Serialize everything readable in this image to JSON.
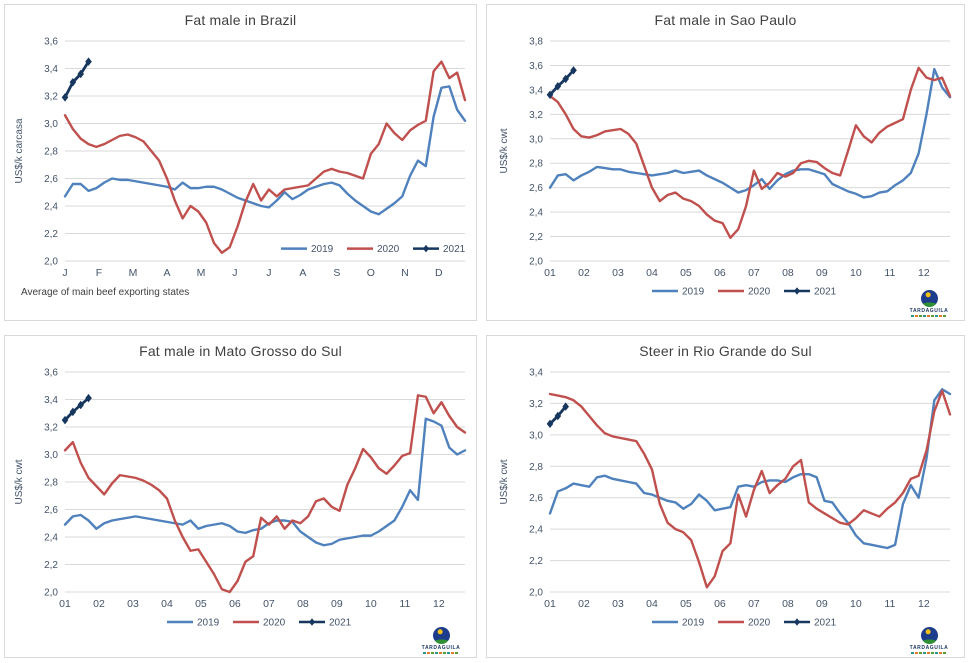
{
  "page": {
    "background": "#ffffff"
  },
  "colors": {
    "gridline": "#d9d9d9",
    "tick_text": "#44546a",
    "title_text": "#404040",
    "legend_text": "#44546a",
    "series_2019": "#4f81bd",
    "series_2020": "#c0504d",
    "series_2021": "#17375e"
  },
  "logo": {
    "text": "TARDAGUILA"
  },
  "chart_data": [
    {
      "type": "line",
      "title": "Fat male in Brazil",
      "ylabel": "US$/k carcasa",
      "ylim": [
        2.0,
        3.6
      ],
      "ytick_step": 0.2,
      "grid": "horizontal",
      "legend_position": "inside-right",
      "x_labels": [
        "J",
        "F",
        "M",
        "A",
        "M",
        "J",
        "J",
        "A",
        "S",
        "O",
        "N",
        "D"
      ],
      "caption": "Average of main beef exporting states",
      "show_logo": false,
      "series": [
        {
          "name": "2019",
          "color": "#4f81bd",
          "marker": "none",
          "values": [
            2.47,
            2.56,
            2.56,
            2.51,
            2.53,
            2.57,
            2.6,
            2.59,
            2.59,
            2.58,
            2.57,
            2.56,
            2.55,
            2.54,
            2.52,
            2.57,
            2.53,
            2.53,
            2.54,
            2.54,
            2.52,
            2.49,
            2.46,
            2.44,
            2.42,
            2.4,
            2.39,
            2.44,
            2.5,
            2.45,
            2.48,
            2.52,
            2.54,
            2.56,
            2.57,
            2.55,
            2.49,
            2.44,
            2.4,
            2.36,
            2.34,
            2.38,
            2.42,
            2.47,
            2.62,
            2.73,
            2.69,
            3.05,
            3.26,
            3.27,
            3.1,
            3.02
          ]
        },
        {
          "name": "2020",
          "color": "#c0504d",
          "marker": "none",
          "values": [
            3.06,
            2.96,
            2.89,
            2.85,
            2.83,
            2.85,
            2.88,
            2.91,
            2.92,
            2.9,
            2.87,
            2.8,
            2.73,
            2.6,
            2.44,
            2.31,
            2.4,
            2.36,
            2.28,
            2.13,
            2.06,
            2.1,
            2.25,
            2.43,
            2.56,
            2.44,
            2.52,
            2.47,
            2.52,
            2.53,
            2.54,
            2.55,
            2.6,
            2.65,
            2.67,
            2.65,
            2.64,
            2.62,
            2.6,
            2.78,
            2.85,
            3.0,
            2.93,
            2.88,
            2.95,
            2.99,
            3.02,
            3.38,
            3.45,
            3.33,
            3.37,
            3.17
          ]
        },
        {
          "name": "2021",
          "color": "#17375e",
          "marker": "diamond",
          "values": [
            3.19,
            3.3,
            3.36,
            3.45
          ]
        }
      ]
    },
    {
      "type": "line",
      "title": "Fat male in Sao Paulo",
      "ylabel": "US$/k cwt",
      "ylim": [
        2.0,
        3.8
      ],
      "ytick_step": 0.2,
      "grid": "horizontal",
      "legend_position": "bottom-center",
      "x_labels": [
        "01",
        "02",
        "03",
        "04",
        "05",
        "06",
        "07",
        "08",
        "09",
        "10",
        "11",
        "12"
      ],
      "caption": "",
      "show_logo": true,
      "series": [
        {
          "name": "2019",
          "color": "#4f81bd",
          "marker": "none",
          "values": [
            2.6,
            2.7,
            2.71,
            2.66,
            2.7,
            2.73,
            2.77,
            2.76,
            2.75,
            2.75,
            2.73,
            2.72,
            2.71,
            2.7,
            2.71,
            2.72,
            2.74,
            2.72,
            2.73,
            2.74,
            2.7,
            2.67,
            2.64,
            2.6,
            2.56,
            2.58,
            2.62,
            2.67,
            2.59,
            2.66,
            2.71,
            2.74,
            2.75,
            2.75,
            2.73,
            2.71,
            2.63,
            2.6,
            2.57,
            2.55,
            2.52,
            2.53,
            2.56,
            2.57,
            2.62,
            2.66,
            2.72,
            2.88,
            3.2,
            3.57,
            3.42,
            3.34
          ]
        },
        {
          "name": "2020",
          "color": "#c0504d",
          "marker": "none",
          "values": [
            3.35,
            3.3,
            3.2,
            3.08,
            3.02,
            3.01,
            3.03,
            3.06,
            3.07,
            3.08,
            3.04,
            2.96,
            2.78,
            2.6,
            2.49,
            2.54,
            2.56,
            2.51,
            2.49,
            2.45,
            2.38,
            2.33,
            2.31,
            2.19,
            2.26,
            2.45,
            2.74,
            2.59,
            2.64,
            2.72,
            2.69,
            2.72,
            2.8,
            2.82,
            2.81,
            2.76,
            2.72,
            2.7,
            2.9,
            3.11,
            3.02,
            2.97,
            3.05,
            3.1,
            3.13,
            3.16,
            3.4,
            3.58,
            3.5,
            3.48,
            3.5,
            3.35
          ]
        },
        {
          "name": "2021",
          "color": "#17375e",
          "marker": "diamond",
          "values": [
            3.36,
            3.43,
            3.49,
            3.56
          ]
        }
      ]
    },
    {
      "type": "line",
      "title": "Fat male in Mato Grosso do Sul",
      "ylabel": "US$/k cwt",
      "ylim": [
        2.0,
        3.6
      ],
      "ytick_step": 0.2,
      "grid": "horizontal",
      "legend_position": "bottom-center",
      "x_labels": [
        "01",
        "02",
        "03",
        "04",
        "05",
        "06",
        "07",
        "08",
        "09",
        "10",
        "11",
        "12"
      ],
      "caption": "",
      "show_logo": true,
      "series": [
        {
          "name": "2019",
          "color": "#4f81bd",
          "marker": "none",
          "values": [
            2.49,
            2.55,
            2.56,
            2.52,
            2.46,
            2.5,
            2.52,
            2.53,
            2.54,
            2.55,
            2.54,
            2.53,
            2.52,
            2.51,
            2.5,
            2.49,
            2.52,
            2.46,
            2.48,
            2.49,
            2.5,
            2.48,
            2.44,
            2.43,
            2.45,
            2.46,
            2.5,
            2.52,
            2.52,
            2.51,
            2.44,
            2.4,
            2.36,
            2.34,
            2.35,
            2.38,
            2.39,
            2.4,
            2.41,
            2.41,
            2.44,
            2.48,
            2.52,
            2.62,
            2.74,
            2.67,
            3.26,
            3.24,
            3.21,
            3.05,
            3.0,
            3.03
          ]
        },
        {
          "name": "2020",
          "color": "#c0504d",
          "marker": "none",
          "values": [
            3.03,
            3.09,
            2.94,
            2.83,
            2.77,
            2.71,
            2.79,
            2.85,
            2.84,
            2.83,
            2.81,
            2.78,
            2.74,
            2.68,
            2.52,
            2.4,
            2.3,
            2.31,
            2.22,
            2.13,
            2.02,
            2.0,
            2.08,
            2.22,
            2.26,
            2.54,
            2.49,
            2.55,
            2.46,
            2.52,
            2.5,
            2.55,
            2.66,
            2.68,
            2.62,
            2.59,
            2.78,
            2.9,
            3.04,
            2.98,
            2.9,
            2.86,
            2.92,
            2.99,
            3.01,
            3.43,
            3.42,
            3.3,
            3.38,
            3.28,
            3.2,
            3.16
          ]
        },
        {
          "name": "2021",
          "color": "#17375e",
          "marker": "diamond",
          "values": [
            3.25,
            3.31,
            3.36,
            3.41
          ]
        }
      ]
    },
    {
      "type": "line",
      "title": "Steer in Rio Grande do Sul",
      "ylabel": "US$/k cwt",
      "ylim": [
        2.0,
        3.4
      ],
      "ytick_step": 0.2,
      "grid": "horizontal",
      "legend_position": "bottom-center",
      "x_labels": [
        "01",
        "02",
        "03",
        "04",
        "05",
        "06",
        "07",
        "08",
        "09",
        "10",
        "11",
        "12"
      ],
      "caption": "",
      "show_logo": true,
      "series": [
        {
          "name": "2019",
          "color": "#4f81bd",
          "marker": "none",
          "values": [
            2.5,
            2.64,
            2.66,
            2.69,
            2.68,
            2.67,
            2.73,
            2.74,
            2.72,
            2.71,
            2.7,
            2.69,
            2.63,
            2.62,
            2.6,
            2.58,
            2.57,
            2.53,
            2.56,
            2.62,
            2.58,
            2.52,
            2.53,
            2.54,
            2.67,
            2.68,
            2.67,
            2.7,
            2.71,
            2.71,
            2.7,
            2.73,
            2.75,
            2.75,
            2.73,
            2.58,
            2.57,
            2.5,
            2.44,
            2.36,
            2.31,
            2.3,
            2.29,
            2.28,
            2.3,
            2.56,
            2.68,
            2.6,
            2.85,
            3.22,
            3.29,
            3.26
          ]
        },
        {
          "name": "2020",
          "color": "#c0504d",
          "marker": "none",
          "values": [
            3.26,
            3.25,
            3.24,
            3.22,
            3.18,
            3.12,
            3.06,
            3.01,
            2.99,
            2.98,
            2.97,
            2.96,
            2.88,
            2.78,
            2.56,
            2.44,
            2.4,
            2.38,
            2.33,
            2.19,
            2.03,
            2.1,
            2.26,
            2.31,
            2.62,
            2.48,
            2.65,
            2.77,
            2.63,
            2.68,
            2.72,
            2.8,
            2.84,
            2.57,
            2.53,
            2.5,
            2.47,
            2.44,
            2.43,
            2.47,
            2.52,
            2.5,
            2.48,
            2.53,
            2.57,
            2.63,
            2.72,
            2.74,
            2.9,
            3.15,
            3.28,
            3.13
          ]
        },
        {
          "name": "2021",
          "color": "#17375e",
          "marker": "diamond",
          "values": [
            3.07,
            3.12,
            3.18
          ]
        }
      ]
    }
  ]
}
